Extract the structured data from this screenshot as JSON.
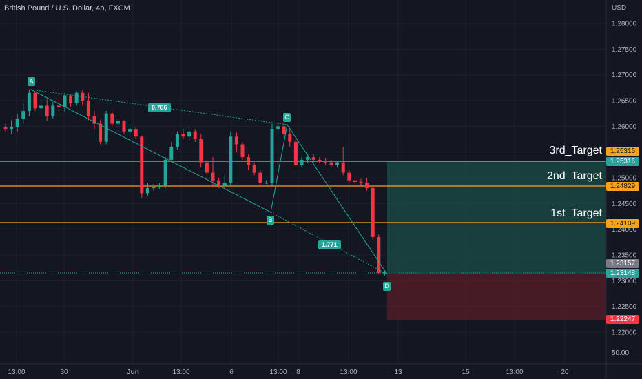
{
  "header": {
    "title": "British Pound / U.S. Dollar, 4h, FXCM",
    "currency": "USD"
  },
  "price_axis": {
    "ticks": [
      "1.28000",
      "1.27500",
      "1.27000",
      "1.26500",
      "1.26000",
      "1.25500",
      "1.25000",
      "1.24500",
      "1.24000",
      "1.23500",
      "1.23000",
      "1.22500",
      "1.22000"
    ],
    "volume_tick": "50.00"
  },
  "time_axis": {
    "ticks": [
      "13:00",
      "30",
      "Jun",
      "13:00",
      "6",
      "13:00",
      "8",
      "13:00",
      "13",
      "15",
      "13:00",
      "20"
    ]
  },
  "targets": [
    {
      "label": "3rd_Target",
      "price": "1.25316"
    },
    {
      "label": "2nd_Target",
      "price": "1.24829"
    },
    {
      "label": "1st_Target",
      "price": "1.24109"
    }
  ],
  "price_tags": {
    "third_target_left": "1.25316",
    "third_target_right": "1.25316",
    "second_target": "1.24829",
    "first_target": "1.24109",
    "last_price": "1.23157",
    "entry": "1.23148",
    "stop": "1.22247"
  },
  "pattern": {
    "points": [
      "A",
      "B",
      "C",
      "D"
    ],
    "ratios": [
      "0.706",
      "1.771"
    ]
  },
  "colors": {
    "bull": "#26a69a",
    "bear": "#f23645",
    "target_line": "#f7a21b",
    "background": "#131722"
  },
  "chart_data": {
    "type": "candlestick",
    "symbol": "GBPUSD",
    "timeframe": "4h",
    "ylim": [
      1.2175,
      1.284
    ],
    "candles": [
      {
        "o": 1.2598,
        "h": 1.2605,
        "l": 1.259,
        "c": 1.2595
      },
      {
        "o": 1.2595,
        "h": 1.2612,
        "l": 1.2585,
        "c": 1.2598
      },
      {
        "o": 1.2598,
        "h": 1.2625,
        "l": 1.259,
        "c": 1.2615
      },
      {
        "o": 1.2615,
        "h": 1.2645,
        "l": 1.2605,
        "c": 1.263
      },
      {
        "o": 1.263,
        "h": 1.2672,
        "l": 1.262,
        "c": 1.2665
      },
      {
        "o": 1.2665,
        "h": 1.2668,
        "l": 1.263,
        "c": 1.2635
      },
      {
        "o": 1.2635,
        "h": 1.265,
        "l": 1.262,
        "c": 1.264
      },
      {
        "o": 1.264,
        "h": 1.2652,
        "l": 1.261,
        "c": 1.262
      },
      {
        "o": 1.262,
        "h": 1.2648,
        "l": 1.2615,
        "c": 1.264
      },
      {
        "o": 1.264,
        "h": 1.2662,
        "l": 1.263,
        "c": 1.2637
      },
      {
        "o": 1.2637,
        "h": 1.2665,
        "l": 1.2628,
        "c": 1.266
      },
      {
        "o": 1.266,
        "h": 1.2662,
        "l": 1.2638,
        "c": 1.2645
      },
      {
        "o": 1.2645,
        "h": 1.2668,
        "l": 1.264,
        "c": 1.2665
      },
      {
        "o": 1.2665,
        "h": 1.267,
        "l": 1.264,
        "c": 1.265
      },
      {
        "o": 1.265,
        "h": 1.2665,
        "l": 1.2612,
        "c": 1.262
      },
      {
        "o": 1.262,
        "h": 1.263,
        "l": 1.2595,
        "c": 1.2605
      },
      {
        "o": 1.2605,
        "h": 1.2612,
        "l": 1.2565,
        "c": 1.257
      },
      {
        "o": 1.257,
        "h": 1.263,
        "l": 1.2565,
        "c": 1.2625
      },
      {
        "o": 1.2625,
        "h": 1.2628,
        "l": 1.26,
        "c": 1.2605
      },
      {
        "o": 1.2605,
        "h": 1.2615,
        "l": 1.259,
        "c": 1.261
      },
      {
        "o": 1.261,
        "h": 1.2612,
        "l": 1.2585,
        "c": 1.259
      },
      {
        "o": 1.259,
        "h": 1.2605,
        "l": 1.258,
        "c": 1.2595
      },
      {
        "o": 1.2595,
        "h": 1.2598,
        "l": 1.2575,
        "c": 1.258
      },
      {
        "o": 1.258,
        "h": 1.2582,
        "l": 1.246,
        "c": 1.247
      },
      {
        "o": 1.247,
        "h": 1.249,
        "l": 1.2465,
        "c": 1.248
      },
      {
        "o": 1.248,
        "h": 1.2488,
        "l": 1.2475,
        "c": 1.2482
      },
      {
        "o": 1.2482,
        "h": 1.249,
        "l": 1.2478,
        "c": 1.2485
      },
      {
        "o": 1.2485,
        "h": 1.254,
        "l": 1.248,
        "c": 1.2535
      },
      {
        "o": 1.2535,
        "h": 1.257,
        "l": 1.253,
        "c": 1.256
      },
      {
        "o": 1.256,
        "h": 1.259,
        "l": 1.2555,
        "c": 1.2585
      },
      {
        "o": 1.2585,
        "h": 1.2595,
        "l": 1.2575,
        "c": 1.258
      },
      {
        "o": 1.258,
        "h": 1.2598,
        "l": 1.2572,
        "c": 1.259
      },
      {
        "o": 1.259,
        "h": 1.2595,
        "l": 1.257,
        "c": 1.2575
      },
      {
        "o": 1.2575,
        "h": 1.2585,
        "l": 1.252,
        "c": 1.253
      },
      {
        "o": 1.253,
        "h": 1.2535,
        "l": 1.25,
        "c": 1.251
      },
      {
        "o": 1.251,
        "h": 1.254,
        "l": 1.2485,
        "c": 1.2495
      },
      {
        "o": 1.2495,
        "h": 1.25,
        "l": 1.248,
        "c": 1.2485
      },
      {
        "o": 1.2485,
        "h": 1.2505,
        "l": 1.2478,
        "c": 1.249
      },
      {
        "o": 1.249,
        "h": 1.259,
        "l": 1.2485,
        "c": 1.258
      },
      {
        "o": 1.258,
        "h": 1.2588,
        "l": 1.255,
        "c": 1.2565
      },
      {
        "o": 1.2565,
        "h": 1.257,
        "l": 1.2535,
        "c": 1.254
      },
      {
        "o": 1.254,
        "h": 1.2545,
        "l": 1.2515,
        "c": 1.2525
      },
      {
        "o": 1.2525,
        "h": 1.253,
        "l": 1.2505,
        "c": 1.251
      },
      {
        "o": 1.251,
        "h": 1.2515,
        "l": 1.2485,
        "c": 1.249
      },
      {
        "o": 1.249,
        "h": 1.2495,
        "l": 1.2488,
        "c": 1.249
      },
      {
        "o": 1.249,
        "h": 1.2605,
        "l": 1.2485,
        "c": 1.2595
      },
      {
        "o": 1.2595,
        "h": 1.2605,
        "l": 1.2585,
        "c": 1.26
      },
      {
        "o": 1.26,
        "h": 1.2608,
        "l": 1.258,
        "c": 1.2585
      },
      {
        "o": 1.2585,
        "h": 1.2595,
        "l": 1.256,
        "c": 1.257
      },
      {
        "o": 1.257,
        "h": 1.2575,
        "l": 1.252,
        "c": 1.2525
      },
      {
        "o": 1.2525,
        "h": 1.254,
        "l": 1.252,
        "c": 1.2535
      },
      {
        "o": 1.2535,
        "h": 1.2545,
        "l": 1.2528,
        "c": 1.254
      },
      {
        "o": 1.254,
        "h": 1.2545,
        "l": 1.253,
        "c": 1.2535
      },
      {
        "o": 1.2535,
        "h": 1.254,
        "l": 1.2528,
        "c": 1.2532
      },
      {
        "o": 1.2532,
        "h": 1.2538,
        "l": 1.2525,
        "c": 1.253
      },
      {
        "o": 1.253,
        "h": 1.2535,
        "l": 1.252,
        "c": 1.2525
      },
      {
        "o": 1.2525,
        "h": 1.2532,
        "l": 1.252,
        "c": 1.253
      },
      {
        "o": 1.253,
        "h": 1.256,
        "l": 1.2505,
        "c": 1.251
      },
      {
        "o": 1.251,
        "h": 1.2515,
        "l": 1.249,
        "c": 1.2495
      },
      {
        "o": 1.2495,
        "h": 1.25,
        "l": 1.2488,
        "c": 1.2492
      },
      {
        "o": 1.2492,
        "h": 1.2498,
        "l": 1.2485,
        "c": 1.249
      },
      {
        "o": 1.249,
        "h": 1.25,
        "l": 1.2475,
        "c": 1.248
      },
      {
        "o": 1.248,
        "h": 1.2482,
        "l": 1.238,
        "c": 1.2385
      },
      {
        "o": 1.2385,
        "h": 1.239,
        "l": 1.2312,
        "c": 1.2315
      },
      {
        "o": 1.2315,
        "h": 1.232,
        "l": 1.231,
        "c": 1.2316
      }
    ]
  }
}
